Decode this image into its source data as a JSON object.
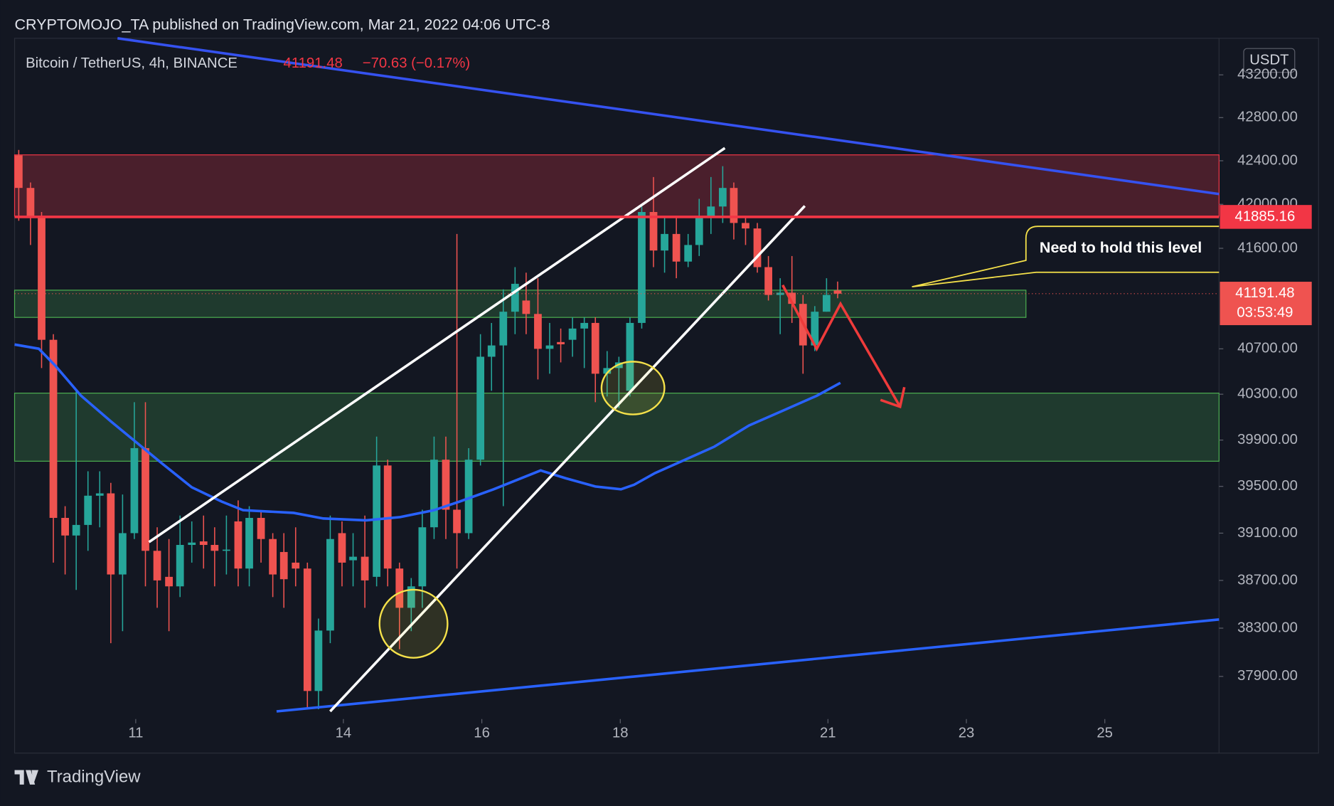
{
  "header": {
    "published": "CRYPTOMOJO_TA published on TradingView.com, Mar 21, 2022 04:06 UTC-8",
    "symbol": "Bitcoin / TetherUS, 4h, BINANCE",
    "change": "−70.63 (−0.17%)",
    "currency": "USDT"
  },
  "footer": {
    "brand": "TradingView"
  },
  "chart_data": {
    "type": "candlestick",
    "log_scale": true,
    "x": [
      9.31,
      9.48,
      9.64,
      9.81,
      9.98,
      10.14,
      10.31,
      10.48,
      10.64,
      10.81,
      10.98,
      11.14,
      11.31,
      11.48,
      11.64,
      11.81,
      11.98,
      12.14,
      12.31,
      12.48,
      12.64,
      12.81,
      12.98,
      13.14,
      13.31,
      13.48,
      13.64,
      13.81,
      13.98,
      14.14,
      14.31,
      14.48,
      14.64,
      14.81,
      14.98,
      15.14,
      15.31,
      15.48,
      15.64,
      15.81,
      15.98,
      16.14,
      16.31,
      16.48,
      16.64,
      16.81,
      16.98,
      17.14,
      17.31,
      17.48,
      17.64,
      17.81,
      17.98,
      18.14,
      18.31,
      18.48,
      18.64,
      18.81,
      18.98,
      19.14,
      19.31,
      19.48,
      19.64,
      19.81,
      19.98,
      20.14,
      20.31,
      20.48,
      20.64,
      20.81,
      20.98,
      21.14
    ],
    "open": [
      42450,
      42150,
      41880,
      40780,
      39230,
      39080,
      39170,
      39420,
      39440,
      38750,
      39100,
      39830,
      38950,
      38730,
      38650,
      39000,
      39030,
      39000,
      38950,
      39200,
      38800,
      39230,
      39050,
      38940,
      38850,
      38800,
      37780,
      38280,
      39100,
      38870,
      38900,
      38730,
      39680,
      38800,
      38470,
      38650,
      39150,
      39730,
      39300,
      39100,
      39730,
      40630,
      40730,
      41030,
      41130,
      41010,
      40700,
      40760,
      40780,
      40880,
      40930,
      40480,
      40530,
      40330,
      40930,
      41930,
      41580,
      41730,
      41480,
      41630,
      41880,
      41980,
      42150,
      41830,
      41780,
      41430,
      41180,
      41200,
      41100,
      40730,
      41030,
      41220
    ],
    "high": [
      42500,
      42200,
      41930,
      40830,
      39330,
      40330,
      39630,
      39630,
      39530,
      39430,
      40230,
      40230,
      39150,
      39050,
      39250,
      39200,
      39250,
      39150,
      39250,
      39380,
      39330,
      39280,
      39100,
      39100,
      39150,
      38850,
      38380,
      39250,
      39200,
      39100,
      39250,
      39930,
      39730,
      38850,
      38720,
      39300,
      39930,
      39930,
      41730,
      39830,
      40830,
      40930,
      41230,
      41430,
      41380,
      41330,
      40930,
      40880,
      40980,
      40980,
      40980,
      40680,
      40630,
      40980,
      41980,
      42250,
      41880,
      41880,
      41730,
      42050,
      42250,
      42350,
      42200,
      41880,
      41830,
      41530,
      41330,
      41530,
      41180,
      41080,
      41330,
      41300
    ],
    "low": [
      41850,
      41630,
      40530,
      38850,
      38750,
      38620,
      38950,
      39150,
      38175,
      38275,
      39050,
      38650,
      38470,
      38275,
      38560,
      38850,
      38800,
      38650,
      38750,
      38650,
      38650,
      38850,
      38560,
      38470,
      38650,
      37630,
      37630,
      38175,
      38650,
      38650,
      38470,
      38650,
      38650,
      38125,
      38275,
      38470,
      39050,
      39050,
      38800,
      39050,
      39680,
      40330,
      39330,
      40830,
      40830,
      40430,
      40480,
      40580,
      40630,
      40530,
      40230,
      40280,
      40180,
      40280,
      40880,
      41430,
      41380,
      41330,
      41430,
      41530,
      41730,
      41830,
      41680,
      41630,
      41380,
      41130,
      40830,
      40930,
      40480,
      40680,
      41030,
      41150
    ],
    "close": [
      42150,
      41880,
      40780,
      39230,
      39080,
      39170,
      39420,
      39440,
      38750,
      39100,
      39830,
      38950,
      38700,
      38650,
      39000,
      39020,
      39000,
      38950,
      38960,
      38800,
      39230,
      39050,
      38750,
      38710,
      38800,
      37780,
      38280,
      39050,
      38850,
      38900,
      38700,
      39680,
      38800,
      38470,
      38650,
      39150,
      39730,
      39300,
      39100,
      39730,
      40630,
      40730,
      41030,
      41280,
      41010,
      40700,
      40730,
      40740,
      40880,
      40930,
      40480,
      40530,
      40580,
      40930,
      41930,
      41580,
      41730,
      41480,
      41630,
      41880,
      41980,
      42150,
      41830,
      41780,
      41430,
      41180,
      41200,
      41100,
      40730,
      41030,
      41180,
      41191.48
    ],
    "up_color": "#26a69a",
    "down_color": "#ef5350",
    "ma": {
      "color": "#2962ff",
      "x": [
        9.25,
        9.6,
        9.84,
        10.21,
        10.64,
        11.01,
        11.38,
        11.81,
        12.24,
        12.55,
        13.28,
        13.71,
        14.33,
        14.82,
        15.31,
        15.68,
        16.17,
        16.85,
        17.21,
        17.64,
        18.01,
        18.2,
        18.5,
        18.87,
        19.36,
        19.86,
        20.35,
        20.84,
        21.18
      ],
      "values": [
        40738,
        40701,
        40550,
        40287,
        40063,
        39880,
        39697,
        39492,
        39370,
        39296,
        39273,
        39225,
        39209,
        39237,
        39296,
        39370,
        39475,
        39637,
        39570,
        39499,
        39475,
        39514,
        39614,
        39712,
        39843,
        40027,
        40156,
        40287,
        40400
      ]
    },
    "level": {
      "value": 41885.16,
      "color": "#f23645"
    },
    "last_price": 41191.48,
    "countdown": "03:53:49",
    "annotation": "Need to hold this level",
    "xlim": [
      9.25,
      26.65
    ],
    "xticks": [
      11,
      14,
      16,
      18,
      21,
      23,
      25
    ],
    "ylim": [
      37550,
      43545
    ],
    "yticks": [
      {
        "value": 43200,
        "label": "43200.00"
      },
      {
        "value": 42800,
        "label": "42800.00"
      },
      {
        "value": 42400,
        "label": "42400.00"
      },
      {
        "value": 42000,
        "label": "42000.00"
      },
      {
        "value": 41600,
        "label": "41600.00"
      },
      {
        "value": 40700,
        "label": "40700.00"
      },
      {
        "value": 40300,
        "label": "40300.00"
      },
      {
        "value": 39900,
        "label": "39900.00"
      },
      {
        "value": 39500,
        "label": "39500.00"
      },
      {
        "value": 39100,
        "label": "39100.00"
      },
      {
        "value": 38700,
        "label": "38700.00"
      },
      {
        "value": 38300,
        "label": "38300.00"
      },
      {
        "value": 37900,
        "label": "37900.00"
      }
    ],
    "grid": false
  }
}
